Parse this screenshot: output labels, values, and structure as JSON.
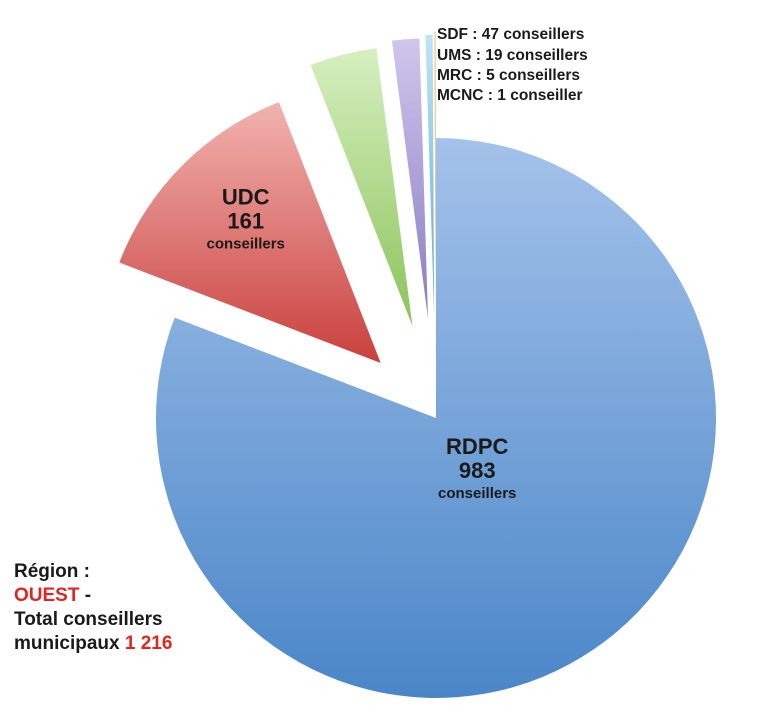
{
  "chart_data": {
    "type": "pie",
    "exploded": true,
    "slices": [
      {
        "party": "RDPC",
        "value": 983,
        "unit": "conseillers",
        "color": "#6f9fd8"
      },
      {
        "party": "UDC",
        "value": 161,
        "unit": "conseillers",
        "color": "#df6e6b"
      },
      {
        "party": "SDF",
        "value": 47,
        "unit": "conseillers",
        "color": "#a8d67a"
      },
      {
        "party": "UMS",
        "value": 19,
        "unit": "conseillers",
        "color": "#a99bd6"
      },
      {
        "party": "MRC",
        "value": 5,
        "unit": "conseillers",
        "color": "#7ec6e6"
      },
      {
        "party": "MCNC",
        "value": 1,
        "unit": "conseiller",
        "color": "#f3a64a"
      }
    ],
    "legend": [
      "SDF : 47 conseillers",
      "UMS : 19 conseillers",
      "MRC : 5 conseillers",
      "MCNC : 1 conseiller"
    ],
    "legend_placement": "top-right"
  },
  "region_note": {
    "line1": "Région :",
    "region": "OUEST",
    "dash": " -",
    "line3": "Total conseillers",
    "line4_prefix": "municipaux ",
    "total": "1 216"
  }
}
